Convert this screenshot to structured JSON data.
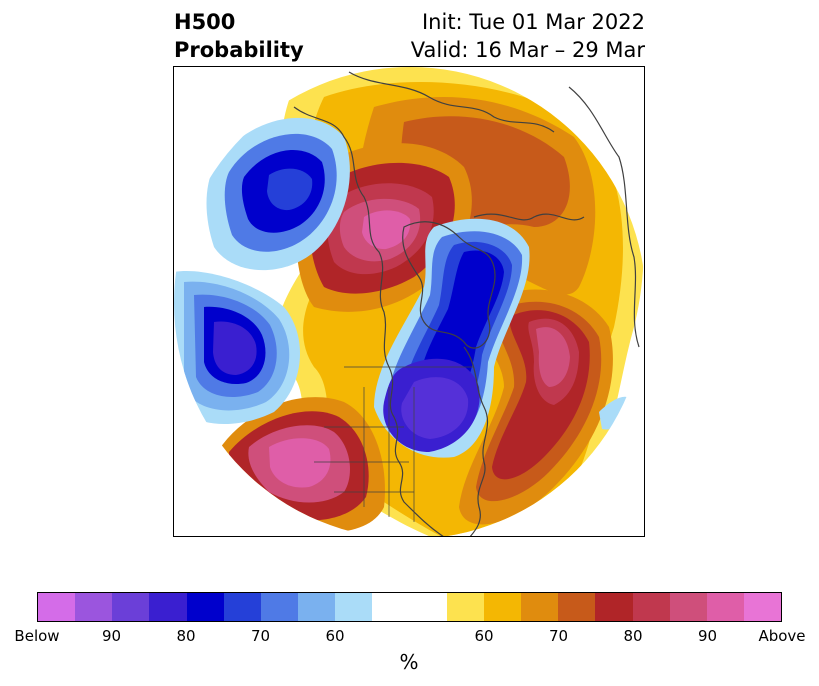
{
  "header": {
    "title_line1": "H500",
    "title_line2": "Probability",
    "init": "Init: Tue 01 Mar 2022",
    "valid": "Valid: 16 Mar – 29 Mar"
  },
  "colorbar": {
    "colors": [
      "#d46ce8",
      "#9b55de",
      "#6b3fd8",
      "#3a1fd0",
      "#0000cc",
      "#2540d8",
      "#4f7ae6",
      "#7ab1ef",
      "#aadcf8",
      "#ffffff",
      "#ffffff",
      "#fde24f",
      "#f4b703",
      "#e08c0e",
      "#c75a1a",
      "#b02528",
      "#c0384e",
      "#cf4f7b",
      "#df5ea8",
      "#e874d6"
    ],
    "ticks": [
      "Below",
      "90",
      "80",
      "70",
      "60",
      "60",
      "70",
      "80",
      "90",
      "Above"
    ],
    "unit_label": "%"
  },
  "colors": {
    "below_core": "#5530d8",
    "below_deep": "#0000cc",
    "below_mid": "#2540d8",
    "below_light": "#7ab1ef",
    "below_pale": "#aadcf8",
    "above_pale": "#fde24f",
    "above_low": "#f4b703",
    "above_mid": "#e08c0e",
    "above_orange": "#c75a1a",
    "above_red": "#b02528",
    "above_deep": "#cf4f7b",
    "above_core": "#df5ea8",
    "coastline": "#404040"
  },
  "map": {
    "projection": "north-polar-stereographic-disc",
    "region": "Northern Hemisphere / North America",
    "has_borders": true
  }
}
